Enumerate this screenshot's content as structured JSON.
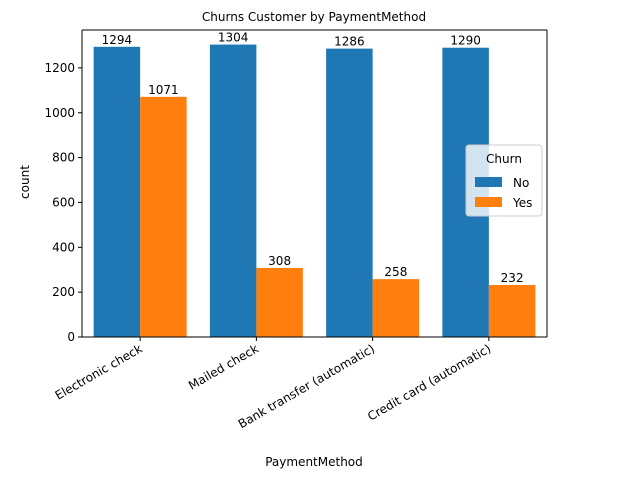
{
  "chart_data": {
    "type": "bar",
    "title": "Churns Customer by PaymentMethod",
    "xlabel": "PaymentMethod",
    "ylabel": "count",
    "categories": [
      "Electronic check",
      "Mailed check",
      "Bank transfer (automatic)",
      "Credit card (automatic)"
    ],
    "series": [
      {
        "name": "No",
        "values": [
          1294,
          1304,
          1286,
          1290
        ],
        "color": "#1f77b4"
      },
      {
        "name": "Yes",
        "values": [
          1071,
          308,
          258,
          232
        ],
        "color": "#ff7f0e"
      }
    ],
    "ylim": [
      0,
      1369
    ],
    "yticks": [
      0,
      200,
      400,
      600,
      800,
      1000,
      1200
    ],
    "data_labels": true,
    "legend": {
      "title": "Churn",
      "placement": "center-right"
    },
    "grid": false
  }
}
